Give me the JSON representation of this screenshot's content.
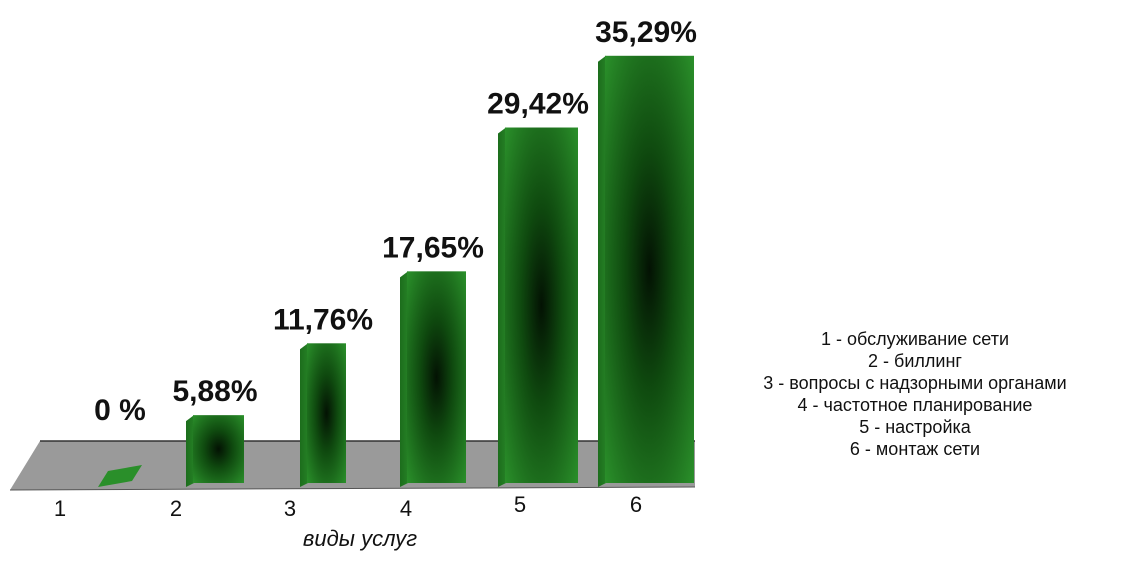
{
  "chart_data": {
    "type": "bar",
    "categories": [
      "1",
      "2",
      "3",
      "4",
      "5",
      "6"
    ],
    "values": [
      0,
      5.88,
      11.76,
      17.65,
      29.42,
      35.29
    ],
    "value_labels": [
      "0 %",
      "5,88%",
      "11,76%",
      "17,65%",
      "29,42%",
      "35,29%"
    ],
    "xlabel": "виды услуг",
    "ylim": [
      0,
      36
    ],
    "grid": false,
    "legend_placement": "right",
    "legend": [
      "1 - обслуживание сети",
      "2  -  биллинг",
      "3 - вопросы с надзорными органами",
      "4 - частотное планирование",
      "5 - настройка",
      "6 - монтаж сети"
    ],
    "colors": {
      "bar_dark": "#0a2a0a",
      "bar_mid": "#1f6e1f",
      "bar_light": "#2f962f",
      "floor": "#999999"
    }
  }
}
